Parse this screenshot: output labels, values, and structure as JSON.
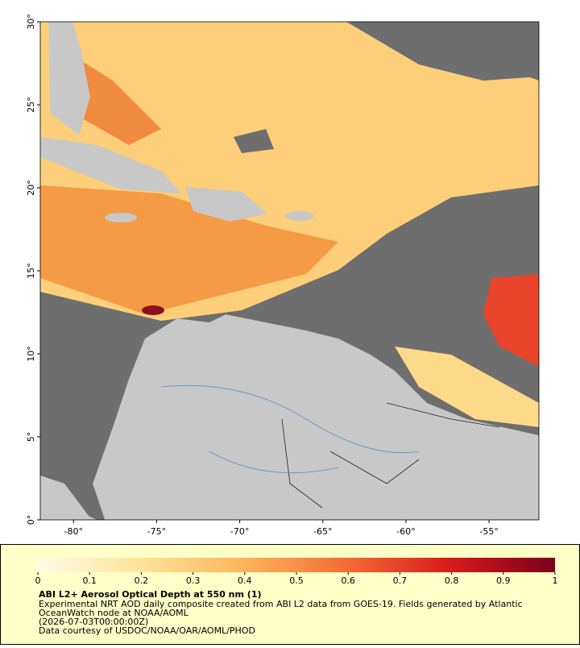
{
  "map": {
    "lonlim": [
      -82,
      -52
    ],
    "latlim": [
      0,
      30
    ],
    "lon_ticks": [
      {
        "value": -80,
        "label": "-80°"
      },
      {
        "value": -75,
        "label": "-75°"
      },
      {
        "value": -70,
        "label": "-70°"
      },
      {
        "value": -65,
        "label": "-65°"
      },
      {
        "value": -60,
        "label": "-60°"
      },
      {
        "value": -55,
        "label": "-55°"
      }
    ],
    "lat_ticks": [
      {
        "value": 0,
        "label": "0°"
      },
      {
        "value": 5,
        "label": "5°"
      },
      {
        "value": 10,
        "label": "10°"
      },
      {
        "value": 15,
        "label": "15°"
      },
      {
        "value": 20,
        "label": "20°"
      },
      {
        "value": 25,
        "label": "25°"
      },
      {
        "value": 30,
        "label": "30°"
      }
    ]
  },
  "colorbar": {
    "range": [
      0,
      1
    ],
    "ticks": [
      0,
      0.1,
      0.2,
      0.3,
      0.4,
      0.5,
      0.6,
      0.7,
      0.8,
      0.9,
      1
    ]
  },
  "caption": {
    "title": "ABI L2+ Aerosol Optical Depth at 550 nm (1)",
    "lines": [
      "Experimental NRT AOD daily composite created from ABI L2 data from GOES-19. Fields generated by Atlantic",
      "OceanWatch node at NOAA/AOML",
      "(2026-07-03T00:00:00Z)",
      "Data courtesy of USDOC/NOAA/OAR/AOML/PHOD"
    ]
  }
}
